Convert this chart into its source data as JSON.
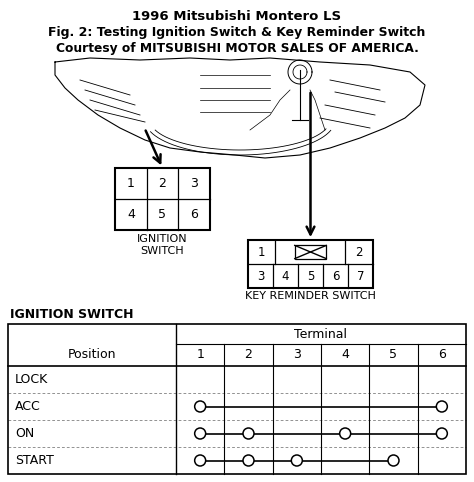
{
  "title_line1": "1996 Mitsubishi Montero LS",
  "title_line2": "Fig. 2: Testing Ignition Switch & Key Reminder Switch",
  "title_line3": "Courtesy of MITSUBISHI MOTOR SALES OF AMERICA.",
  "ignition_switch_label": "IGNITION\nSWITCH",
  "key_reminder_label": "KEY REMINDER SWITCH",
  "table_title": "IGNITION SWITCH",
  "table_col_header": "Terminal",
  "table_pos_header": "Position",
  "table_terminals": [
    "1",
    "2",
    "3",
    "4",
    "5",
    "6"
  ],
  "table_positions": [
    "LOCK",
    "ACC",
    "ON",
    "START"
  ],
  "bg_color": "#ffffff",
  "line_color": "#000000",
  "connections": {
    "ACC": [
      1,
      0,
      0,
      0,
      0,
      1
    ],
    "ON": [
      1,
      1,
      0,
      1,
      0,
      1
    ],
    "START": [
      1,
      1,
      1,
      0,
      1,
      0
    ],
    "LOCK": [
      0,
      0,
      0,
      0,
      0,
      0
    ]
  },
  "fig_w": 4.74,
  "fig_h": 4.82,
  "dpi": 100
}
